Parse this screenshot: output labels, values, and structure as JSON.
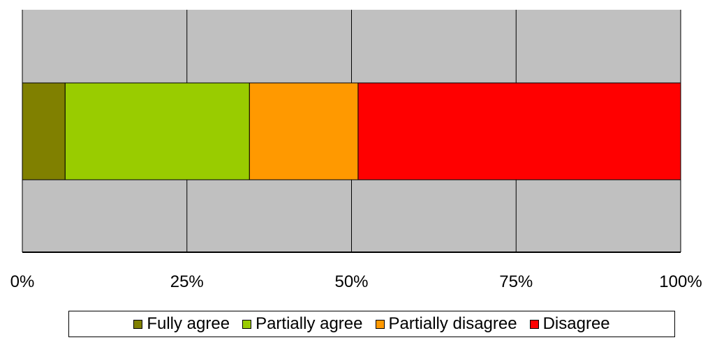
{
  "chart_data": {
    "type": "bar",
    "orientation": "horizontal",
    "stacking": "percent",
    "categories": [
      ""
    ],
    "series": [
      {
        "name": "Fully agree",
        "values": [
          6.5
        ],
        "color": "#808000"
      },
      {
        "name": "Partially agree",
        "values": [
          28.0
        ],
        "color": "#99cc00"
      },
      {
        "name": "Partially disagree",
        "values": [
          16.5
        ],
        "color": "#ff9900"
      },
      {
        "name": "Disagree",
        "values": [
          49.0
        ],
        "color": "#ff0000"
      }
    ],
    "xlim": [
      0,
      100
    ],
    "xticks": [
      0,
      25,
      50,
      75,
      100
    ],
    "xtick_labels": [
      "0%",
      "25%",
      "50%",
      "75%",
      "100%"
    ],
    "title": "",
    "xlabel": "",
    "ylabel": "",
    "grid": "vertical",
    "plot_background": "#c0c0c0",
    "legend_position": "bottom"
  }
}
